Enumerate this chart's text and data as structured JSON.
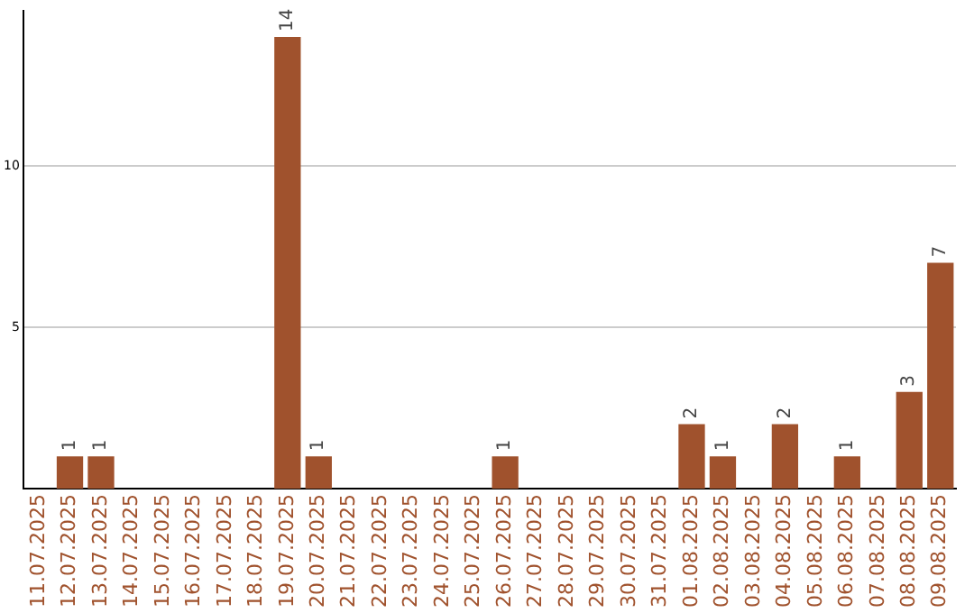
{
  "chart_data": {
    "type": "bar",
    "categories": [
      "11.07.2025",
      "12.07.2025",
      "13.07.2025",
      "14.07.2025",
      "15.07.2025",
      "16.07.2025",
      "17.07.2025",
      "18.07.2025",
      "19.07.2025",
      "20.07.2025",
      "21.07.2025",
      "22.07.2025",
      "23.07.2025",
      "24.07.2025",
      "25.07.2025",
      "26.07.2025",
      "27.07.2025",
      "28.07.2025",
      "29.07.2025",
      "30.07.2025",
      "31.07.2025",
      "01.08.2025",
      "02.08.2025",
      "03.08.2025",
      "04.08.2025",
      "05.08.2025",
      "06.08.2025",
      "07.08.2025",
      "08.08.2025",
      "09.08.2025"
    ],
    "values": [
      0,
      1,
      1,
      0,
      0,
      0,
      0,
      0,
      14,
      1,
      0,
      0,
      0,
      0,
      0,
      1,
      0,
      0,
      0,
      0,
      0,
      2,
      1,
      0,
      2,
      0,
      1,
      0,
      3,
      7
    ],
    "value_labels": [
      null,
      "1",
      "1",
      null,
      null,
      null,
      null,
      null,
      "14",
      "1",
      null,
      null,
      null,
      null,
      null,
      "1",
      null,
      null,
      null,
      null,
      null,
      "2",
      "1",
      null,
      "2",
      null,
      "1",
      null,
      "3",
      "7"
    ],
    "color": "#a0522d",
    "ylim": [
      0,
      14.8
    ],
    "yticks": [
      5,
      10
    ],
    "grid": "y",
    "legend": false
  }
}
